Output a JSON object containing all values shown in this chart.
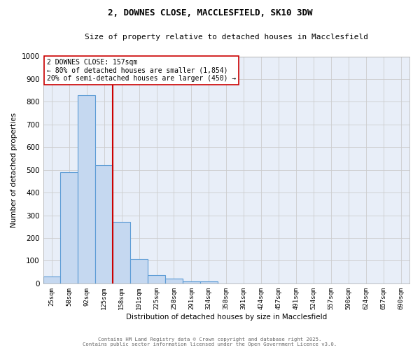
{
  "title": "2, DOWNES CLOSE, MACCLESFIELD, SK10 3DW",
  "subtitle": "Size of property relative to detached houses in Macclesfield",
  "xlabel": "Distribution of detached houses by size in Macclesfield",
  "ylabel": "Number of detached properties",
  "categories": [
    "25sqm",
    "58sqm",
    "92sqm",
    "125sqm",
    "158sqm",
    "191sqm",
    "225sqm",
    "258sqm",
    "291sqm",
    "324sqm",
    "358sqm",
    "391sqm",
    "424sqm",
    "457sqm",
    "491sqm",
    "524sqm",
    "557sqm",
    "590sqm",
    "624sqm",
    "657sqm",
    "690sqm"
  ],
  "values": [
    30,
    490,
    830,
    520,
    270,
    108,
    38,
    20,
    10,
    10,
    0,
    0,
    0,
    0,
    0,
    0,
    0,
    0,
    0,
    0,
    0
  ],
  "bar_color": "#c5d8f0",
  "bar_edge_color": "#5b9bd5",
  "red_line_x": 3.5,
  "red_line_color": "#cc0000",
  "annotation_text": "2 DOWNES CLOSE: 157sqm\n← 80% of detached houses are smaller (1,854)\n20% of semi-detached houses are larger (450) →",
  "annotation_box_color": "white",
  "annotation_box_edge": "#cc0000",
  "ylim": [
    0,
    1000
  ],
  "yticks": [
    0,
    100,
    200,
    300,
    400,
    500,
    600,
    700,
    800,
    900,
    1000
  ],
  "grid_color": "#cccccc",
  "background_color": "#e8eef8",
  "footer_line1": "Contains HM Land Registry data © Crown copyright and database right 2025.",
  "footer_line2": "Contains public sector information licensed under the Open Government Licence v3.0."
}
